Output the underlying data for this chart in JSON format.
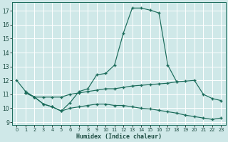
{
  "title": "",
  "xlabel": "Humidex (Indice chaleur)",
  "background_color": "#cfe8e8",
  "grid_color": "#b0d0d0",
  "line_color": "#1a6b5a",
  "xlim": [
    -0.5,
    23.5
  ],
  "ylim": [
    8.8,
    17.6
  ],
  "xticks": [
    0,
    1,
    2,
    3,
    4,
    5,
    6,
    7,
    8,
    9,
    10,
    11,
    12,
    13,
    14,
    15,
    16,
    17,
    18,
    19,
    20,
    21,
    22,
    23
  ],
  "yticks": [
    9,
    10,
    11,
    12,
    13,
    14,
    15,
    16,
    17
  ],
  "series": [
    {
      "x": [
        0,
        1,
        2,
        3,
        4,
        5,
        6,
        7,
        8,
        9,
        10,
        11,
        12,
        13,
        14,
        15,
        16,
        17,
        18
      ],
      "y": [
        12.0,
        11.2,
        10.8,
        10.3,
        10.1,
        9.8,
        10.4,
        11.2,
        11.4,
        12.4,
        12.5,
        13.1,
        15.4,
        17.2,
        17.2,
        17.05,
        16.85,
        13.1,
        11.9
      ]
    },
    {
      "x": [
        1,
        2,
        3,
        4,
        5,
        6,
        7,
        8,
        9,
        10,
        11,
        12,
        13,
        14,
        15,
        16,
        17,
        18,
        19,
        20,
        21,
        22,
        23
      ],
      "y": [
        11.1,
        10.8,
        10.8,
        10.8,
        10.8,
        11.0,
        11.1,
        11.2,
        11.3,
        11.4,
        11.4,
        11.5,
        11.6,
        11.65,
        11.7,
        11.75,
        11.8,
        11.9,
        11.95,
        12.0,
        11.0,
        10.7,
        10.55
      ]
    },
    {
      "x": [
        1,
        2,
        3,
        4,
        5,
        6,
        7,
        8,
        9,
        10,
        11,
        12,
        13,
        14,
        15,
        16,
        17,
        18,
        19,
        20,
        21,
        22,
        23
      ],
      "y": [
        11.1,
        10.8,
        10.3,
        10.1,
        9.8,
        10.0,
        10.1,
        10.2,
        10.3,
        10.3,
        10.2,
        10.2,
        10.1,
        10.0,
        9.95,
        9.85,
        9.75,
        9.65,
        9.5,
        9.4,
        9.3,
        9.2,
        9.3
      ]
    }
  ]
}
